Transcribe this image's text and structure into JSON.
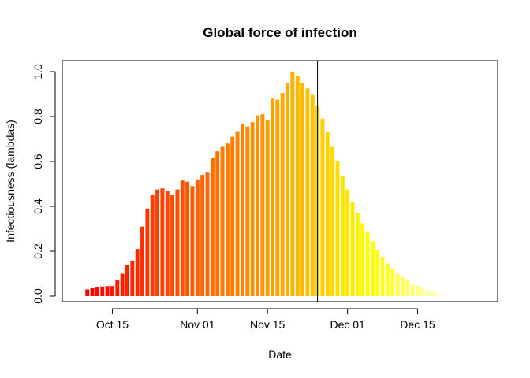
{
  "chart_data": {
    "type": "bar",
    "title": "Global force of infection",
    "xlabel": "Date",
    "ylabel": "Infectiousness (lambdas)",
    "ylim": [
      0,
      1.0
    ],
    "yticks": [
      "0.0",
      "0.2",
      "0.4",
      "0.6",
      "0.8",
      "1.0"
    ],
    "xticks": [
      {
        "date": "2020-10-15",
        "label": "Oct 15"
      },
      {
        "date": "2020-11-01",
        "label": "Nov 01"
      },
      {
        "date": "2020-11-15",
        "label": "Nov 15"
      },
      {
        "date": "2020-12-01",
        "label": "Dec 01"
      },
      {
        "date": "2020-12-15",
        "label": "Dec 15"
      }
    ],
    "xlim": [
      "2020-10-05",
      "2020-12-31"
    ],
    "start_date": "2020-10-10",
    "values": [
      0.03,
      0.035,
      0.04,
      0.043,
      0.045,
      0.045,
      0.07,
      0.1,
      0.14,
      0.155,
      0.21,
      0.31,
      0.39,
      0.45,
      0.475,
      0.48,
      0.47,
      0.45,
      0.475,
      0.515,
      0.51,
      0.49,
      0.52,
      0.54,
      0.55,
      0.615,
      0.645,
      0.665,
      0.68,
      0.71,
      0.735,
      0.765,
      0.755,
      0.775,
      0.805,
      0.81,
      0.785,
      0.88,
      0.875,
      0.905,
      0.95,
      1.0,
      0.98,
      0.95,
      0.925,
      0.9,
      0.85,
      0.79,
      0.73,
      0.665,
      0.6,
      0.535,
      0.475,
      0.42,
      0.37,
      0.325,
      0.285,
      0.245,
      0.205,
      0.175,
      0.145,
      0.12,
      0.1,
      0.085,
      0.07,
      0.056,
      0.045,
      0.036,
      0.027,
      0.02,
      0.014,
      0.008
    ],
    "vline_date": "2020-11-25",
    "grid": false,
    "colors": {
      "gradient_start": "#ff0000",
      "gradient_end": "#ffffcc",
      "axis": "#000000"
    }
  }
}
